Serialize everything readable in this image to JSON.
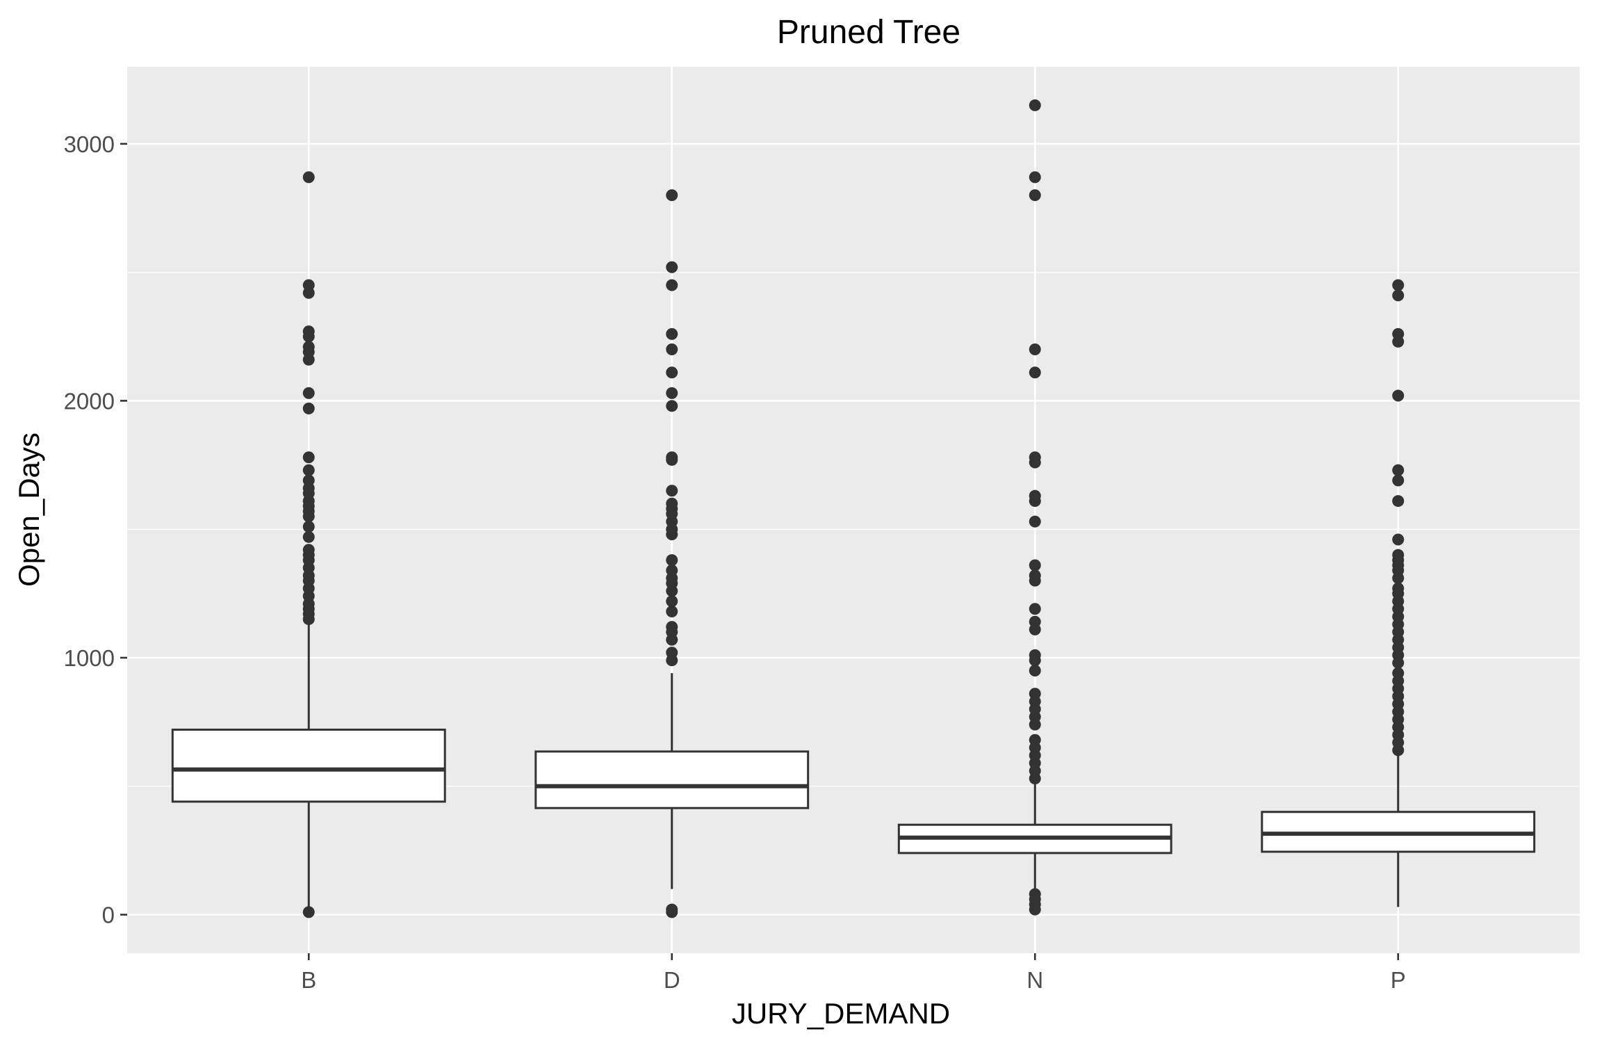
{
  "chart_data": {
    "type": "box",
    "title": "Pruned Tree",
    "xlabel": "JURY_DEMAND",
    "ylabel": "Open_Days",
    "ylim": [
      -150,
      3300
    ],
    "yticks": [
      0,
      1000,
      2000,
      3000
    ],
    "categories": [
      "B",
      "D",
      "N",
      "P"
    ],
    "boxes": [
      {
        "category": "B",
        "whisker_low": 0,
        "q1": 440,
        "median": 565,
        "q3": 720,
        "whisker_high": 1140,
        "outliers": [
          10,
          1150,
          1170,
          1190,
          1210,
          1240,
          1270,
          1300,
          1320,
          1350,
          1380,
          1400,
          1420,
          1470,
          1510,
          1550,
          1570,
          1590,
          1610,
          1640,
          1660,
          1690,
          1730,
          1780,
          1970,
          2030,
          2160,
          2190,
          2210,
          2250,
          2270,
          2420,
          2450,
          2870
        ]
      },
      {
        "category": "D",
        "whisker_low": 100,
        "q1": 415,
        "median": 500,
        "q3": 635,
        "whisker_high": 940,
        "outliers": [
          10,
          20,
          990,
          1020,
          1070,
          1100,
          1120,
          1180,
          1220,
          1260,
          1290,
          1310,
          1340,
          1380,
          1480,
          1500,
          1530,
          1560,
          1580,
          1600,
          1650,
          1770,
          1780,
          1980,
          2030,
          2110,
          2200,
          2260,
          2450,
          2520,
          2800
        ]
      },
      {
        "category": "N",
        "whisker_low": 90,
        "q1": 240,
        "median": 300,
        "q3": 350,
        "whisker_high": 520,
        "outliers": [
          20,
          40,
          60,
          80,
          530,
          560,
          590,
          620,
          650,
          680,
          740,
          770,
          800,
          830,
          860,
          950,
          990,
          1010,
          1110,
          1140,
          1190,
          1300,
          1320,
          1360,
          1530,
          1610,
          1630,
          1760,
          1780,
          2110,
          2200,
          2800,
          2870,
          3150
        ]
      },
      {
        "category": "P",
        "whisker_low": 30,
        "q1": 245,
        "median": 315,
        "q3": 400,
        "whisker_high": 630,
        "outliers": [
          640,
          670,
          700,
          730,
          760,
          790,
          820,
          850,
          880,
          910,
          940,
          980,
          1010,
          1040,
          1070,
          1100,
          1130,
          1160,
          1190,
          1220,
          1250,
          1270,
          1310,
          1340,
          1360,
          1380,
          1400,
          1460,
          1610,
          1690,
          1730,
          2020,
          2230,
          2260,
          2410,
          2450
        ]
      }
    ],
    "grid": true,
    "legend": "none",
    "colors": {
      "panel": "#ebebeb",
      "grid": "#ffffff",
      "box_fill": "#ffffff",
      "line": "#333333",
      "point": "#333333"
    }
  }
}
